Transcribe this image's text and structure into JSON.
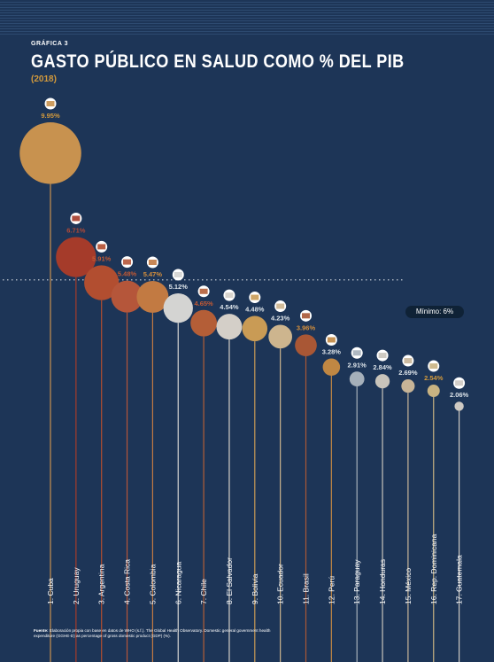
{
  "header": {
    "kicker": "GRÁFICA 3",
    "title": "GASTO PÚBLICO EN SALUD COMO % DEL PIB",
    "subtitle": "(2018)"
  },
  "reference": {
    "label": "Mínimo: 6%",
    "value": 6
  },
  "source": {
    "label": "Fuente:",
    "text": "Elaboración propia con base en datos de WHO (s.f.). The Global Health Observatory. Domestic general government health expenditure (GGHE-D) as percentage of gross domestic product (GDP) (%)."
  },
  "chart_data": {
    "type": "scatter",
    "title": "GASTO PÚBLICO EN SALUD COMO % DEL PIB",
    "subtitle": "(2018)",
    "categories": [
      "1. Cuba",
      "2. Uruguay",
      "3. Argentina",
      "4. Costa Rica",
      "5. Colombia",
      "6. Nicaragua",
      "7. Chile",
      "8. El Salvador",
      "9. Bolivia",
      "10. Ecuador",
      "11. Brasil",
      "12. Perú",
      "13. Paraguay",
      "14. Honduras",
      "15. México",
      "16. Rep. Dominicana",
      "17. Guatemala"
    ],
    "values": [
      9.95,
      6.71,
      5.91,
      5.48,
      5.47,
      5.12,
      4.65,
      4.54,
      4.48,
      4.23,
      3.96,
      3.28,
      2.91,
      2.84,
      2.69,
      2.54,
      2.06
    ],
    "value_labels": [
      "9.95%",
      "6.71%",
      "5.91%",
      "5.48%",
      "5.47%",
      "5.12%",
      "4.65%",
      "4.54%",
      "4.48%",
      "4.23%",
      "3.96%",
      "3.28%",
      "2.91%",
      "2.84%",
      "2.69%",
      "2.54%",
      "2.06%"
    ],
    "colors": [
      "#c8924f",
      "#a53b2a",
      "#b24e30",
      "#b5563a",
      "#c27a42",
      "#d4d4d2",
      "#b45e37",
      "#d4cfc8",
      "#c99b55",
      "#cdb58e",
      "#a95735",
      "#c08743",
      "#a6b0ba",
      "#c9c4bb",
      "#c7b497",
      "#c9b382",
      "#cfcac3"
    ],
    "label_colors": [
      "#d39a3c",
      "#b24a37",
      "#c45a34",
      "#c45a34",
      "#d48e3c",
      "#dde4ea",
      "#c45a34",
      "#dde4ea",
      "#dde4ea",
      "#dde4ea",
      "#d48e3c",
      "#dde4ea",
      "#dde4ea",
      "#dde4ea",
      "#dde4ea",
      "#d39a3c",
      "#dde4ea"
    ],
    "flags": [
      "cuba-flag",
      "uruguay-flag",
      "argentina-flag",
      "costa-rica-flag",
      "colombia-flag",
      "nicaragua-flag",
      "chile-flag",
      "el-salvador-flag",
      "bolivia-flag",
      "ecuador-flag",
      "brasil-flag",
      "peru-flag",
      "paraguay-flag",
      "honduras-flag",
      "mexico-flag",
      "rep-dominicana-flag",
      "guatemala-flag"
    ],
    "reference_line": 6,
    "xlabel": "",
    "ylabel": ""
  }
}
